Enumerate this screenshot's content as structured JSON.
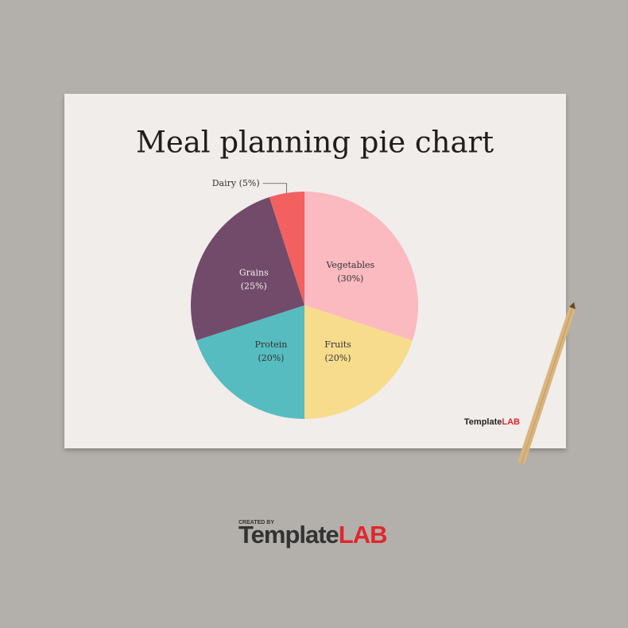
{
  "chart_data": {
    "type": "pie",
    "title": "Meal planning pie chart",
    "categories": [
      "Vegetables",
      "Fruits",
      "Protein",
      "Grains",
      "Dairy"
    ],
    "values": [
      30,
      20,
      20,
      25,
      5
    ],
    "value_labels": [
      "(30%)",
      "(20%)",
      "(20%)",
      "(25%)",
      "(5%)"
    ],
    "colors": [
      "#fbb9c0",
      "#f8dc8d",
      "#56bcbf",
      "#724a6a",
      "#f26060"
    ]
  },
  "watermark": {
    "prefix": "Template",
    "suffix": "LAB"
  },
  "footer": {
    "created_by": "CREATED BY",
    "prefix": "Template",
    "suffix": "LAB"
  }
}
